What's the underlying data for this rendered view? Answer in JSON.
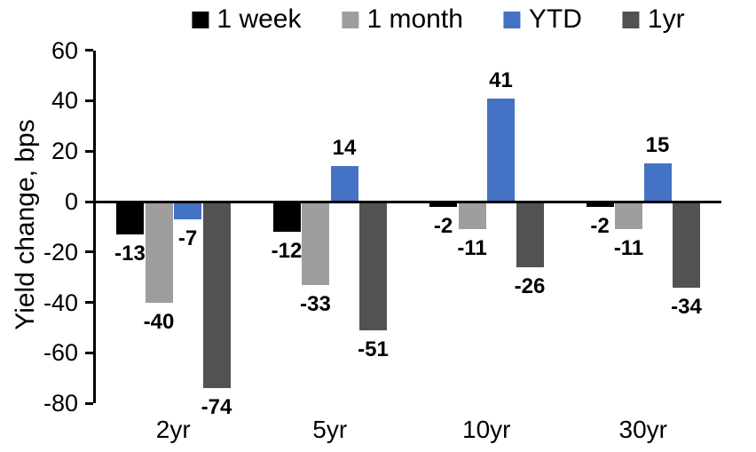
{
  "chart_data": {
    "type": "bar",
    "title": "",
    "ylabel": "Yield change, bps",
    "xlabel": "",
    "categories": [
      "2yr",
      "5yr",
      "10yr",
      "30yr"
    ],
    "series": [
      {
        "name": "1 week",
        "color": "#000000",
        "values": [
          -13,
          -12,
          -2,
          -2
        ]
      },
      {
        "name": "1 month",
        "color": "#9E9E9E",
        "values": [
          -40,
          -33,
          -11,
          -11
        ]
      },
      {
        "name": "YTD",
        "color": "#4472C4",
        "values": [
          -7,
          14,
          41,
          15
        ]
      },
      {
        "name": "1yr",
        "color": "#525252",
        "values": [
          -74,
          -51,
          -26,
          -34
        ]
      }
    ],
    "yticks": [
      60,
      40,
      20,
      0,
      -20,
      -40,
      -60,
      -80
    ],
    "ylim": [
      -80,
      60
    ],
    "grid": false,
    "legend_position": "top",
    "data_labels": "outside-end",
    "axis_color": "#000000",
    "background_color": "#FFFFFF"
  }
}
